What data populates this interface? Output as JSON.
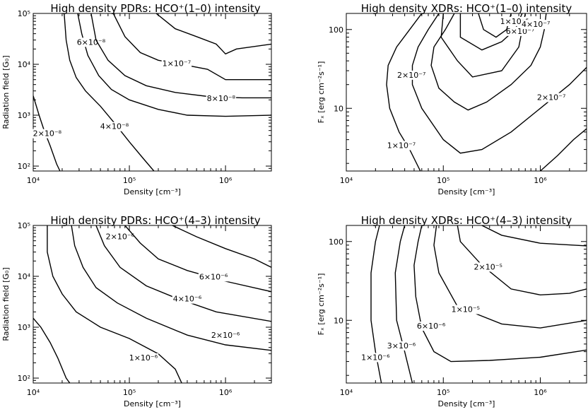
{
  "panels": [
    {
      "title": "High density PDRs: HCO⁺(1–0) intensity",
      "xlabel": "Density [cm⁻³]",
      "ylabel": "Radiation field [G₀]",
      "xticks": [
        "10⁴",
        "10⁵",
        "10⁶"
      ],
      "yticks": [
        "10²",
        "10³",
        "10⁴",
        "10⁵"
      ]
    },
    {
      "title": "High density XDRs: HCO⁺(1–0) intensity",
      "xlabel": "Density [cm⁻³]",
      "ylabel": "Fₓ [erg cm⁻²s⁻¹]",
      "xticks": [
        "10⁴",
        "10⁵",
        "10⁶"
      ],
      "yticks": [
        "10",
        "100"
      ]
    },
    {
      "title": "High density PDRs: HCO⁺(4–3) intensity",
      "xlabel": "Density [cm⁻³]",
      "ylabel": "Radiation field [G₀]",
      "xticks": [
        "10⁴",
        "10⁵",
        "10⁶"
      ],
      "yticks": [
        "10²",
        "10³",
        "10⁴",
        "10⁵"
      ]
    },
    {
      "title": "High density XDRs: HCO⁺(4–3) intensity",
      "xlabel": "Density [cm⁻³]",
      "ylabel": "Fₓ [erg cm⁻²s⁻¹]",
      "xticks": [
        "10⁴",
        "10⁵",
        "10⁶"
      ],
      "yticks": [
        "10",
        "100"
      ]
    }
  ],
  "chart_data": [
    {
      "type": "line",
      "title": "High density PDRs: HCO⁺(1–0) intensity",
      "xlabel": "Density [cm⁻³]",
      "ylabel": "Radiation field [G₀]",
      "xscale": "log",
      "yscale": "log",
      "xlim": [
        10000,
        3000000
      ],
      "ylim": [
        80,
        100000
      ],
      "series": [
        {
          "name": "2×10⁻⁸",
          "label_at": [
            14000,
            400
          ],
          "points": [
            [
              10000,
              2400
            ],
            [
              11500,
              1000
            ],
            [
              13000,
              500
            ],
            [
              15000,
              250
            ],
            [
              17500,
              110
            ],
            [
              19000,
              80
            ]
          ]
        },
        {
          "name": "4×10⁻⁸",
          "label_at": [
            70000,
            550
          ],
          "points": [
            [
              21000,
              100000
            ],
            [
              22000,
              30000
            ],
            [
              24000,
              12000
            ],
            [
              28000,
              5500
            ],
            [
              35000,
              3000
            ],
            [
              50000,
              1500
            ],
            [
              70000,
              700
            ],
            [
              100000,
              300
            ],
            [
              140000,
              140
            ],
            [
              180000,
              80
            ]
          ]
        },
        {
          "name": "6×10⁻⁸",
          "label_at": [
            40000,
            25000
          ],
          "points": [
            [
              29000,
              100000
            ],
            [
              32000,
              40000
            ],
            [
              37000,
              15000
            ],
            [
              48000,
              6000
            ],
            [
              65000,
              3200
            ],
            [
              100000,
              2000
            ],
            [
              200000,
              1300
            ],
            [
              400000,
              1000
            ],
            [
              1000000,
              950
            ],
            [
              3000000,
              1000
            ]
          ]
        },
        {
          "name": "8×10⁻⁸",
          "label_at": [
            900000,
            1950
          ],
          "points": [
            [
              40000,
              100000
            ],
            [
              45000,
              30000
            ],
            [
              60000,
              12000
            ],
            [
              90000,
              6000
            ],
            [
              150000,
              3800
            ],
            [
              300000,
              2800
            ],
            [
              700000,
              2300
            ],
            [
              1500000,
              2200
            ],
            [
              3000000,
              2200
            ]
          ]
        },
        {
          "name": "1×10⁻⁷",
          "label_at": [
            310000,
            9500
          ],
          "points": [
            [
              68000,
              100000
            ],
            [
              90000,
              35000
            ],
            [
              130000,
              17000
            ],
            [
              200000,
              12000
            ],
            [
              400000,
              9500
            ],
            [
              650000,
              8000
            ],
            [
              1000000,
              5000
            ],
            [
              3000000,
              5000
            ]
          ]
        },
        {
          "name": "",
          "label_at": null,
          "points": [
            [
              190000,
              100000
            ],
            [
              300000,
              50000
            ],
            [
              500000,
              35000
            ],
            [
              800000,
              25000
            ],
            [
              1000000,
              16000
            ],
            [
              1300000,
              20000
            ],
            [
              3000000,
              25000
            ]
          ]
        }
      ]
    },
    {
      "type": "line",
      "title": "High density XDRs: HCO⁺(1–0) intensity",
      "xlabel": "Density [cm⁻³]",
      "ylabel": "Fₓ [erg cm⁻²s⁻¹]",
      "xscale": "log",
      "yscale": "log",
      "xlim": [
        10000,
        3000000
      ],
      "ylim": [
        1.6,
        160
      ],
      "series": [
        {
          "name": "1×10⁻⁷",
          "label_at": [
            37000,
            3.2
          ],
          "points": [
            [
              60000,
              160
            ],
            [
              45000,
              100
            ],
            [
              33000,
              60
            ],
            [
              27000,
              35
            ],
            [
              26000,
              20
            ],
            [
              28000,
              10
            ],
            [
              35000,
              5
            ],
            [
              45000,
              3
            ],
            [
              58000,
              1.6
            ]
          ]
        },
        {
          "name": "2×10⁻⁷",
          "label_at": [
            47000,
            25
          ],
          "points": [
            [
              90000,
              160
            ],
            [
              70000,
              100
            ],
            [
              55000,
              60
            ],
            [
              48000,
              35
            ],
            [
              48000,
              20
            ],
            [
              60000,
              10
            ],
            [
              100000,
              4
            ],
            [
              150000,
              2.7
            ],
            [
              250000,
              3
            ],
            [
              500000,
              5
            ],
            [
              1000000,
              10
            ],
            [
              2000000,
              20
            ],
            [
              3000000,
              33
            ]
          ]
        },
        {
          "name": "2×10⁻⁷",
          "label_at": [
            1300000,
            13
          ]
        },
        {
          "name": "",
          "label_at": null,
          "points": [
            [
              130000,
              160
            ],
            [
              105000,
              100
            ],
            [
              80000,
              60
            ],
            [
              75000,
              35
            ],
            [
              90000,
              18
            ],
            [
              130000,
              12
            ],
            [
              180000,
              9.5
            ],
            [
              280000,
              12
            ],
            [
              500000,
              20
            ],
            [
              800000,
              35
            ],
            [
              1000000,
              60
            ],
            [
              1100000,
              100
            ],
            [
              1150000,
              160
            ]
          ]
        },
        {
          "name": "",
          "label_at": null,
          "points": [
            [
              100000,
              160
            ],
            [
              95000,
              80
            ],
            [
              140000,
              40
            ],
            [
              200000,
              25
            ],
            [
              400000,
              30
            ],
            [
              600000,
              60
            ],
            [
              700000,
              160
            ]
          ]
        },
        {
          "name": "6×10⁻⁷",
          "label_at": [
            620000,
            90
          ],
          "points": [
            [
              150000,
              160
            ],
            [
              150000,
              80
            ],
            [
              250000,
              55
            ],
            [
              400000,
              70
            ],
            [
              550000,
              100
            ],
            [
              650000,
              160
            ]
          ]
        },
        {
          "name": "1×10⁻⁶",
          "label_at": [
            540000,
            120
          ],
          "points": [
            [
              230000,
              160
            ],
            [
              260000,
              100
            ],
            [
              350000,
              80
            ],
            [
              450000,
              100
            ],
            [
              500000,
              160
            ]
          ]
        },
        {
          "name": "4×10⁻⁷",
          "label_at": [
            900000,
            110
          ]
        },
        {
          "name": "",
          "label_at": null,
          "points": [
            [
              1000000,
              1.6
            ],
            [
              1500000,
              2.5
            ],
            [
              2200000,
              4
            ],
            [
              3000000,
              5.5
            ]
          ]
        }
      ]
    },
    {
      "type": "line",
      "title": "High density PDRs: HCO⁺(4–3) intensity",
      "xlabel": "Density [cm⁻³]",
      "ylabel": "Radiation field [G₀]",
      "xscale": "log",
      "yscale": "log",
      "xlim": [
        10000,
        3000000
      ],
      "ylim": [
        80,
        100000
      ],
      "series": [
        {
          "name": "",
          "label_at": null,
          "points": [
            [
              10000,
              1500
            ],
            [
              12000,
              1000
            ],
            [
              15000,
              500
            ],
            [
              18000,
              250
            ],
            [
              22000,
              100
            ],
            [
              24000,
              80
            ]
          ]
        },
        {
          "name": "1×10⁻⁶",
          "label_at": [
            140000,
            230
          ],
          "points": [
            [
              14000,
              100000
            ],
            [
              14000,
              30000
            ],
            [
              16000,
              10000
            ],
            [
              20000,
              4500
            ],
            [
              28000,
              2000
            ],
            [
              50000,
              1000
            ],
            [
              100000,
              600
            ],
            [
              200000,
              300
            ],
            [
              300000,
              150
            ],
            [
              350000,
              80
            ]
          ]
        },
        {
          "name": "2×10⁻⁶",
          "label_at": [
            80000,
            55000
          ],
          "points": [
            [
              25000,
              100000
            ],
            [
              27000,
              40000
            ],
            [
              33000,
              15000
            ],
            [
              45000,
              6000
            ],
            [
              75000,
              3000
            ],
            [
              150000,
              1500
            ],
            [
              400000,
              700
            ],
            [
              1000000,
              450
            ],
            [
              3000000,
              350
            ]
          ]
        },
        {
          "name": "2×10⁻⁶",
          "label_at": [
            1000000,
            640
          ]
        },
        {
          "name": "4×10⁻⁶",
          "label_at": [
            400000,
            3300
          ],
          "points": [
            [
              45000,
              100000
            ],
            [
              55000,
              40000
            ],
            [
              80000,
              15000
            ],
            [
              150000,
              6500
            ],
            [
              300000,
              3800
            ],
            [
              800000,
              2000
            ],
            [
              3000000,
              1300
            ]
          ]
        },
        {
          "name": "6×10⁻⁶",
          "label_at": [
            750000,
            9000
          ],
          "points": [
            [
              90000,
              100000
            ],
            [
              130000,
              45000
            ],
            [
              200000,
              22000
            ],
            [
              400000,
              13000
            ],
            [
              1000000,
              8000
            ],
            [
              3000000,
              5000
            ]
          ]
        },
        {
          "name": "",
          "label_at": null,
          "points": [
            [
              280000,
              100000
            ],
            [
              500000,
              60000
            ],
            [
              1000000,
              35000
            ],
            [
              2000000,
              22000
            ],
            [
              3000000,
              15000
            ]
          ]
        }
      ]
    },
    {
      "type": "line",
      "title": "High density XDRs: HCO⁺(4–3) intensity",
      "xlabel": "Density [cm⁻³]",
      "ylabel": "Fₓ [erg cm⁻²s⁻¹]",
      "xscale": "log",
      "yscale": "log",
      "xlim": [
        10000,
        3000000
      ],
      "ylim": [
        1.6,
        160
      ],
      "series": [
        {
          "name": "1×10⁻⁶",
          "label_at": [
            20000,
            3.2
          ],
          "points": [
            [
              22000,
              160
            ],
            [
              20000,
              100
            ],
            [
              18000,
              40
            ],
            [
              18000,
              10
            ],
            [
              20000,
              4
            ],
            [
              23000,
              1.6
            ]
          ]
        },
        {
          "name": "3×10⁻⁶",
          "label_at": [
            37000,
            4.5
          ],
          "points": [
            [
              40000,
              160
            ],
            [
              36000,
              100
            ],
            [
              32000,
              40
            ],
            [
              33000,
              10
            ],
            [
              40000,
              4
            ],
            [
              48000,
              1.6
            ]
          ]
        },
        {
          "name": "6×10⁻⁶",
          "label_at": [
            75000,
            8
          ],
          "points": [
            [
              60000,
              160
            ],
            [
              55000,
              100
            ],
            [
              50000,
              50
            ],
            [
              52000,
              20
            ],
            [
              60000,
              8
            ],
            [
              80000,
              4
            ],
            [
              120000,
              3
            ],
            [
              300000,
              3.1
            ],
            [
              1000000,
              3.4
            ],
            [
              3000000,
              4.2
            ]
          ]
        },
        {
          "name": "1×10⁻⁵",
          "label_at": [
            170000,
            13
          ],
          "points": [
            [
              85000,
              160
            ],
            [
              80000,
              90
            ],
            [
              90000,
              40
            ],
            [
              140000,
              15
            ],
            [
              400000,
              9
            ],
            [
              1000000,
              8
            ],
            [
              3000000,
              10
            ]
          ]
        },
        {
          "name": "2×10⁻⁵",
          "label_at": [
            290000,
            45
          ],
          "points": [
            [
              140000,
              160
            ],
            [
              150000,
              100
            ],
            [
              250000,
              50
            ],
            [
              500000,
              25
            ],
            [
              1000000,
              21
            ],
            [
              2000000,
              22
            ],
            [
              3000000,
              25
            ]
          ]
        },
        {
          "name": "",
          "label_at": null,
          "points": [
            [
              250000,
              160
            ],
            [
              400000,
              120
            ],
            [
              1000000,
              95
            ],
            [
              3000000,
              88
            ]
          ]
        }
      ]
    }
  ]
}
